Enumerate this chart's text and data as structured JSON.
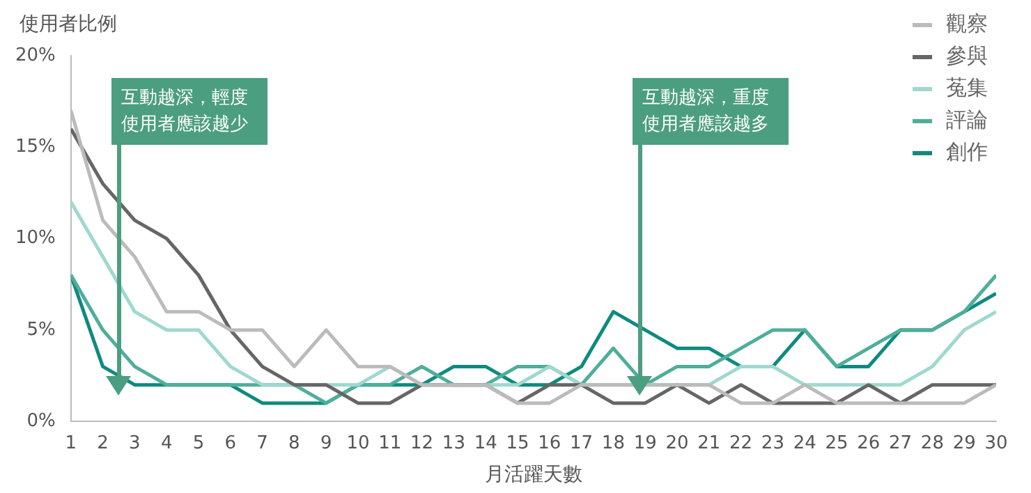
{
  "chart_data": {
    "type": "line",
    "ylabel": "使用者比例",
    "xlabel": "月活躍天數",
    "x": [
      1,
      2,
      3,
      4,
      5,
      6,
      7,
      8,
      9,
      10,
      11,
      12,
      13,
      14,
      15,
      16,
      17,
      18,
      19,
      20,
      21,
      22,
      23,
      24,
      25,
      26,
      27,
      28,
      29,
      30
    ],
    "xlim": [
      1,
      30
    ],
    "xticks": [
      1,
      2,
      3,
      4,
      5,
      6,
      7,
      8,
      9,
      10,
      11,
      12,
      13,
      14,
      15,
      16,
      17,
      18,
      19,
      20,
      21,
      22,
      23,
      24,
      25,
      26,
      27,
      28,
      29,
      30
    ],
    "ylim": [
      0,
      20
    ],
    "yticks": [
      {
        "value": 0,
        "label": "0%"
      },
      {
        "value": 5,
        "label": "5%"
      },
      {
        "value": 10,
        "label": "10%"
      },
      {
        "value": 15,
        "label": "15%"
      },
      {
        "value": 20,
        "label": "20%"
      }
    ],
    "grid": false,
    "legend": "top right",
    "marker": "none",
    "line_style": "solid",
    "series": [
      {
        "name": "觀察",
        "color": "#bbbbbb",
        "values": [
          17,
          11,
          9,
          6,
          6,
          5,
          5,
          3,
          5,
          3,
          3,
          2,
          2,
          2,
          1,
          1,
          2,
          2,
          2,
          2,
          2,
          1,
          1,
          2,
          1,
          1,
          1,
          1,
          1,
          2
        ]
      },
      {
        "name": "參與",
        "color": "#666666",
        "values": [
          16,
          13,
          11,
          10,
          8,
          5,
          3,
          2,
          2,
          1,
          1,
          2,
          2,
          2,
          1,
          2,
          2,
          1,
          1,
          2,
          1,
          2,
          1,
          1,
          1,
          2,
          1,
          2,
          2,
          2
        ]
      },
      {
        "name": "菟集",
        "color": "#9fd8cf",
        "values": [
          12,
          9,
          6,
          5,
          5,
          3,
          2,
          2,
          2,
          2,
          3,
          2,
          2,
          2,
          2,
          3,
          2,
          2,
          2,
          2,
          2,
          3,
          3,
          2,
          2,
          2,
          2,
          3,
          5,
          6
        ]
      },
      {
        "name": "評論",
        "color": "#4fae9a",
        "values": [
          8,
          5,
          3,
          2,
          2,
          2,
          2,
          2,
          1,
          2,
          2,
          3,
          2,
          2,
          3,
          3,
          2,
          4,
          2,
          3,
          3,
          4,
          5,
          5,
          3,
          4,
          5,
          5,
          6,
          8
        ]
      },
      {
        "name": "創作",
        "color": "#0f8a80",
        "values": [
          8,
          3,
          2,
          2,
          2,
          2,
          1,
          1,
          1,
          2,
          2,
          2,
          3,
          3,
          2,
          2,
          3,
          6,
          5,
          4,
          4,
          3,
          3,
          5,
          3,
          3,
          5,
          5,
          6,
          7
        ]
      }
    ],
    "annotations": [
      "互動越深，輕度使用者應該越少",
      "互動越深，重度使用者應該越多"
    ]
  }
}
